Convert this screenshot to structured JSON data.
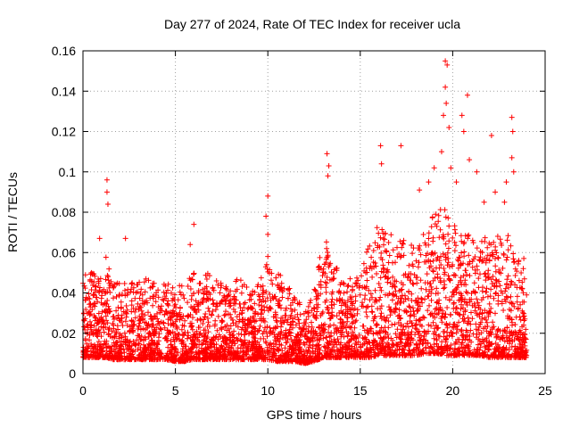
{
  "chart_data": {
    "type": "scatter",
    "title": "Day 277 of 2024, Rate Of TEC Index for receiver ucla",
    "xlabel": "GPS time / hours",
    "ylabel": "ROTI / TECUs",
    "xlim": [
      0,
      25
    ],
    "ylim": [
      0,
      0.16
    ],
    "xticks": [
      0,
      5,
      10,
      15,
      20,
      25
    ],
    "xtick_labels": [
      "0",
      "5",
      "10",
      "15",
      "20",
      "25"
    ],
    "yticks": [
      0,
      0.02,
      0.04,
      0.06,
      0.08,
      0.1,
      0.12,
      0.14,
      0.16
    ],
    "ytick_labels": [
      "0",
      "0.02",
      "0.04",
      "0.06",
      "0.08",
      "0.1",
      "0.12",
      "0.14",
      "0.16"
    ],
    "grid": true,
    "marker": "+",
    "color": "#ff0000",
    "envelope": {
      "x": [
        0,
        0.5,
        1,
        1.3,
        1.5,
        2,
        2.5,
        3,
        3.5,
        4,
        4.5,
        5,
        5.5,
        6,
        6.5,
        7,
        7.5,
        8,
        8.5,
        9,
        9.5,
        10,
        10.5,
        11,
        11.5,
        12,
        12.5,
        13,
        13.5,
        14,
        14.5,
        15,
        15.5,
        16,
        16.5,
        17,
        17.5,
        18,
        18.5,
        19,
        19.5,
        20,
        20.5,
        21,
        21.5,
        22,
        22.5,
        23,
        23.5,
        24
      ],
      "low": [
        0.008,
        0.008,
        0.008,
        0.008,
        0.007,
        0.007,
        0.007,
        0.007,
        0.007,
        0.007,
        0.007,
        0.006,
        0.006,
        0.007,
        0.007,
        0.007,
        0.007,
        0.007,
        0.007,
        0.007,
        0.007,
        0.007,
        0.006,
        0.006,
        0.006,
        0.005,
        0.006,
        0.008,
        0.008,
        0.008,
        0.008,
        0.008,
        0.008,
        0.009,
        0.009,
        0.009,
        0.009,
        0.009,
        0.01,
        0.01,
        0.009,
        0.009,
        0.009,
        0.009,
        0.009,
        0.008,
        0.008,
        0.008,
        0.008,
        0.008
      ],
      "high": [
        0.05,
        0.05,
        0.048,
        0.06,
        0.05,
        0.045,
        0.045,
        0.046,
        0.048,
        0.045,
        0.045,
        0.043,
        0.046,
        0.05,
        0.05,
        0.05,
        0.046,
        0.045,
        0.048,
        0.045,
        0.045,
        0.06,
        0.052,
        0.045,
        0.04,
        0.03,
        0.042,
        0.068,
        0.06,
        0.045,
        0.048,
        0.05,
        0.065,
        0.075,
        0.07,
        0.07,
        0.065,
        0.065,
        0.07,
        0.08,
        0.082,
        0.078,
        0.068,
        0.07,
        0.065,
        0.07,
        0.068,
        0.07,
        0.065,
        0.055
      ]
    },
    "peaks": [
      {
        "x": 1.3,
        "y": 0.096
      },
      {
        "x": 1.3,
        "y": 0.09
      },
      {
        "x": 1.35,
        "y": 0.084
      },
      {
        "x": 0.9,
        "y": 0.067
      },
      {
        "x": 2.3,
        "y": 0.067
      },
      {
        "x": 5.8,
        "y": 0.064
      },
      {
        "x": 6.0,
        "y": 0.074
      },
      {
        "x": 10.0,
        "y": 0.088
      },
      {
        "x": 10.0,
        "y": 0.069
      },
      {
        "x": 9.9,
        "y": 0.078
      },
      {
        "x": 13.2,
        "y": 0.109
      },
      {
        "x": 13.25,
        "y": 0.098
      },
      {
        "x": 13.3,
        "y": 0.103
      },
      {
        "x": 16.1,
        "y": 0.113
      },
      {
        "x": 16.15,
        "y": 0.104
      },
      {
        "x": 17.2,
        "y": 0.113
      },
      {
        "x": 18.2,
        "y": 0.091
      },
      {
        "x": 18.7,
        "y": 0.095
      },
      {
        "x": 19.0,
        "y": 0.102
      },
      {
        "x": 19.6,
        "y": 0.155
      },
      {
        "x": 19.7,
        "y": 0.153
      },
      {
        "x": 19.6,
        "y": 0.142
      },
      {
        "x": 19.65,
        "y": 0.134
      },
      {
        "x": 19.5,
        "y": 0.128
      },
      {
        "x": 19.8,
        "y": 0.122
      },
      {
        "x": 19.4,
        "y": 0.11
      },
      {
        "x": 19.9,
        "y": 0.102
      },
      {
        "x": 20.2,
        "y": 0.095
      },
      {
        "x": 20.5,
        "y": 0.128
      },
      {
        "x": 20.6,
        "y": 0.12
      },
      {
        "x": 20.8,
        "y": 0.138
      },
      {
        "x": 20.9,
        "y": 0.106
      },
      {
        "x": 21.3,
        "y": 0.1
      },
      {
        "x": 22.1,
        "y": 0.118
      },
      {
        "x": 22.3,
        "y": 0.09
      },
      {
        "x": 22.9,
        "y": 0.095
      },
      {
        "x": 23.2,
        "y": 0.127
      },
      {
        "x": 23.25,
        "y": 0.12
      },
      {
        "x": 23.2,
        "y": 0.107
      },
      {
        "x": 23.3,
        "y": 0.1
      },
      {
        "x": 22.8,
        "y": 0.085
      },
      {
        "x": 21.7,
        "y": 0.085
      }
    ]
  }
}
